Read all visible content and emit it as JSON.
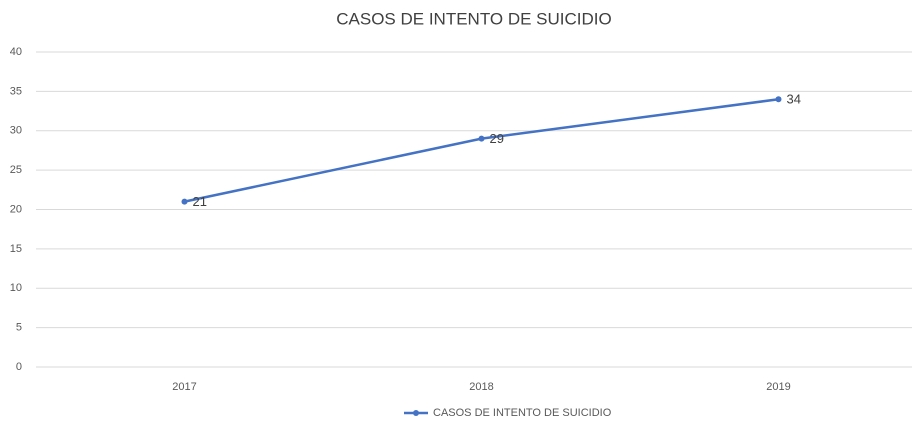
{
  "chart_data": {
    "type": "line",
    "title": "CASOS DE INTENTO DE SUICIDIO",
    "categories": [
      "2017",
      "2018",
      "2019"
    ],
    "series": [
      {
        "name": "CASOS DE INTENTO DE SUICIDIO",
        "color": "#4472c4",
        "values": [
          21,
          29,
          34
        ]
      }
    ],
    "ylim": [
      0,
      40
    ],
    "yticks": [
      0,
      5,
      10,
      15,
      20,
      25,
      30,
      35,
      40
    ],
    "grid": true,
    "legend": "bottom",
    "data_labels": true
  }
}
